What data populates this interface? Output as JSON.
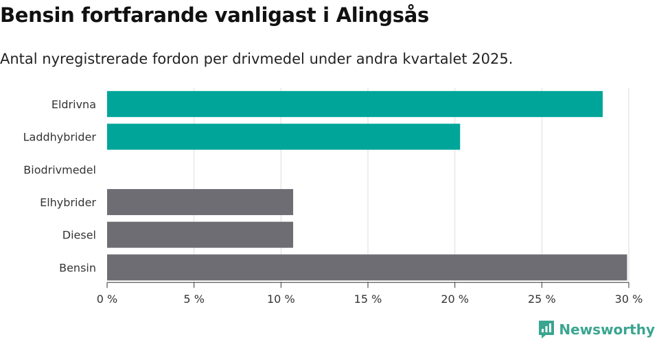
{
  "title": "Bensin fortfarande vanligast i Alingsås",
  "subtitle": "Antal nyregistrerade fordon per drivmedel under andra kvartalet 2025.",
  "brand": {
    "name": "Newsworthy",
    "icon": "newsworthy-logo-icon",
    "color": "#3aa590"
  },
  "colors": {
    "green": "#00a59a",
    "grey": "#6e6d73",
    "grid": "#dddddd"
  },
  "chart_data": {
    "type": "bar",
    "orientation": "horizontal",
    "categories": [
      "Eldrivna",
      "Laddhybrider",
      "Biodrivmedel",
      "Elhybrider",
      "Diesel",
      "Bensin"
    ],
    "values": [
      28.5,
      20.3,
      0,
      10.7,
      10.7,
      29.9
    ],
    "bar_colors": [
      "#00a59a",
      "#00a59a",
      "#00a59a",
      "#6e6d73",
      "#6e6d73",
      "#6e6d73"
    ],
    "xlim": [
      0,
      30
    ],
    "xticks": [
      0,
      5,
      10,
      15,
      20,
      25,
      30
    ],
    "xtick_labels": [
      "0 %",
      "5 %",
      "10 %",
      "15 %",
      "20 %",
      "25 %",
      "30 %"
    ],
    "grid": true,
    "legend": "none"
  }
}
